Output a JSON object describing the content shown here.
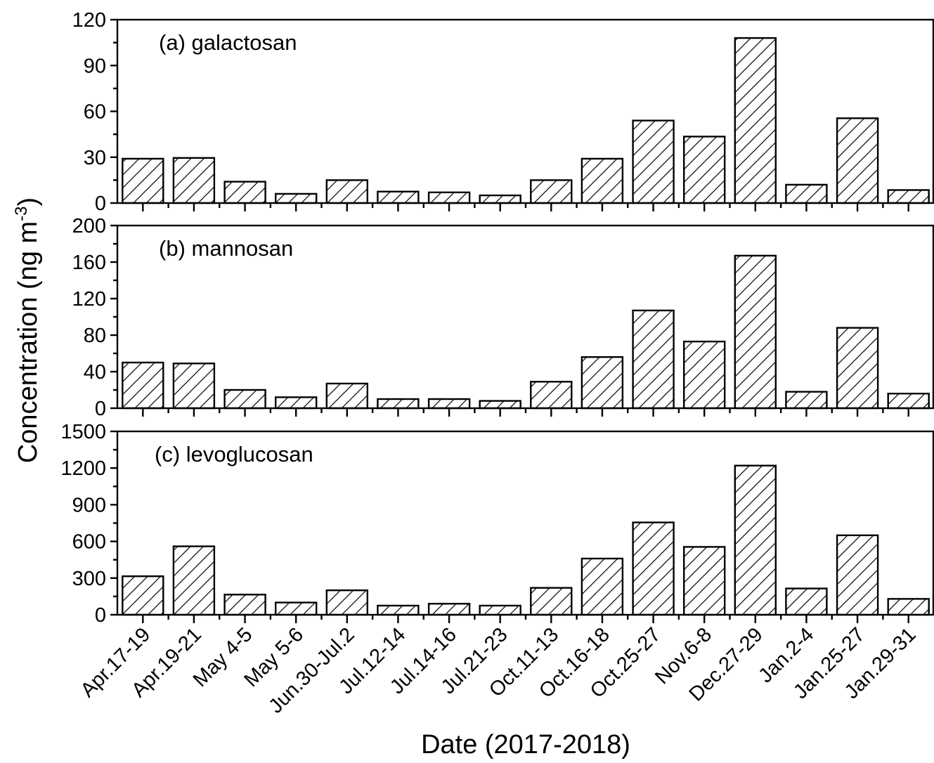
{
  "chart_data": {
    "type": "bar",
    "layout": "three stacked panels sharing the x axis",
    "xlabel": "Date (2017-2018)",
    "ylabel": "Concentration (ng m",
    "ylabel_superscript": "-3",
    "ylabel_close": ")",
    "bar_fill": "diagonal hatch",
    "colors": {
      "bar_stroke": "#000000",
      "hatch": "#000000",
      "background": "#ffffff"
    },
    "categories": [
      "Apr.17-19",
      "Apr.19-21",
      "May 4-5",
      "May 5-6",
      "Jun.30-Jul.2",
      "Jul.12-14",
      "Jul.14-16",
      "Jul.21-23",
      "Oct.11-13",
      "Oct.16-18",
      "Oct.25-27",
      "Nov.6-8",
      "Dec.27-29",
      "Jan.2-4",
      "Jan.25-27",
      "Jan.29-31"
    ],
    "panels": [
      {
        "label": "(a) galactosan",
        "ylim": [
          0,
          120
        ],
        "yticks": [
          "0",
          "30",
          "60",
          "90",
          "120"
        ],
        "values": [
          29,
          29.5,
          14,
          6,
          15,
          7.5,
          7,
          5,
          15,
          29,
          54,
          43.5,
          108,
          12,
          55.5,
          8.5
        ]
      },
      {
        "label": "(b) mannosan",
        "ylim": [
          0,
          200
        ],
        "yticks": [
          "0",
          "40",
          "80",
          "120",
          "160",
          "200"
        ],
        "values": [
          50,
          49,
          20,
          12,
          27,
          10,
          10,
          8,
          29,
          56,
          107,
          73,
          167,
          18,
          88,
          16
        ]
      },
      {
        "label": "(c) levoglucosan",
        "ylim": [
          0,
          1500
        ],
        "yticks": [
          "0",
          "300",
          "600",
          "900",
          "1200",
          "1500"
        ],
        "values": [
          315,
          560,
          165,
          100,
          200,
          75,
          90,
          75,
          220,
          460,
          755,
          555,
          1220,
          215,
          650,
          130
        ]
      }
    ]
  }
}
